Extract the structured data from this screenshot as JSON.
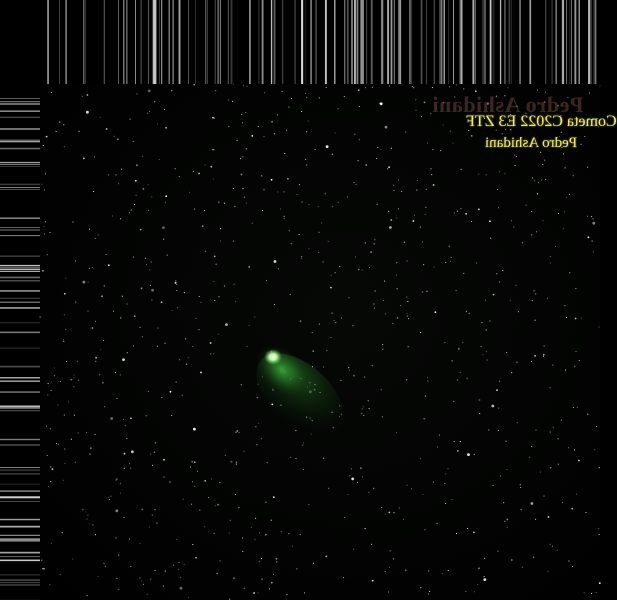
{
  "photo": {
    "subject": "comet-over-starfield",
    "caption_line1": "Cometa C2022 E3 ZTF",
    "caption_line2": "Pedro Ashidani",
    "watermark": "Pedro Ashidani",
    "colors": {
      "background": "#000000",
      "comet_core": "#c8ffb0",
      "comet_coma": "#3fae3a",
      "caption_text": "#f2ee58",
      "watermark_text": "#6e463c"
    }
  }
}
